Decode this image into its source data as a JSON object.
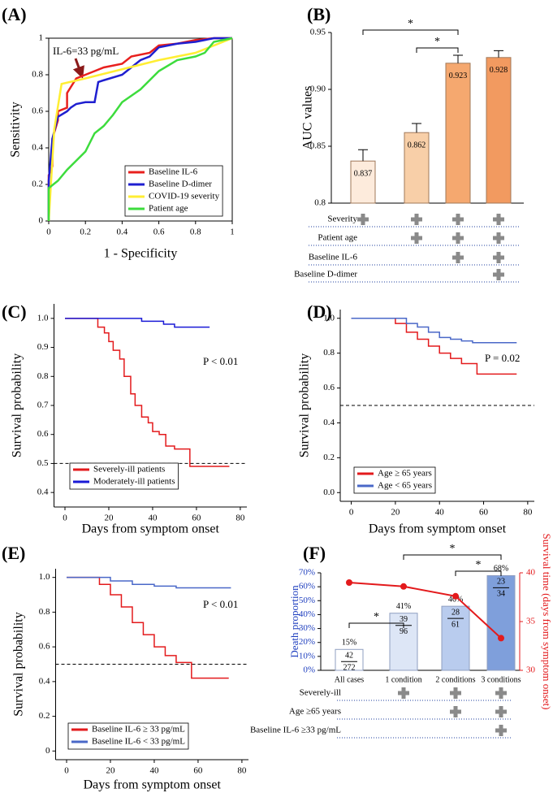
{
  "chart_data": [
    {
      "type": "line",
      "title": "(A)",
      "xlabel": "1 - Specificity",
      "ylabel": "Sensitivity",
      "annotation": "IL-6=33 pg/mL",
      "xlim": [
        0,
        1
      ],
      "ylim": [
        0,
        1
      ],
      "xticks": [
        0,
        0.2,
        0.4,
        0.6,
        0.8,
        1
      ],
      "yticks": [
        0,
        0.2,
        0.4,
        0.6,
        0.8,
        1
      ],
      "legend": "lower right",
      "series": [
        {
          "name": "Baseline IL-6",
          "color": "#e8201e",
          "x": [
            0,
            0,
            0.02,
            0.02,
            0.05,
            0.05,
            0.1,
            0.1,
            0.15,
            0.2,
            0.25,
            0.3,
            0.4,
            0.45,
            0.55,
            0.6,
            0.7,
            0.8,
            0.9,
            1
          ],
          "values": [
            0,
            0.25,
            0.3,
            0.45,
            0.55,
            0.6,
            0.62,
            0.7,
            0.78,
            0.8,
            0.82,
            0.84,
            0.86,
            0.9,
            0.92,
            0.96,
            0.97,
            0.99,
            1,
            1
          ]
        },
        {
          "name": "Baseline D-dimer",
          "color": "#1f1fd0",
          "x": [
            0,
            0,
            0.02,
            0.05,
            0.1,
            0.12,
            0.15,
            0.2,
            0.25,
            0.27,
            0.3,
            0.4,
            0.5,
            0.55,
            0.6,
            0.7,
            0.8,
            0.9,
            1
          ],
          "values": [
            0,
            0.22,
            0.45,
            0.57,
            0.6,
            0.62,
            0.64,
            0.65,
            0.65,
            0.76,
            0.77,
            0.8,
            0.88,
            0.9,
            0.95,
            0.97,
            0.98,
            1,
            1
          ]
        },
        {
          "name": "COVID-19 severity",
          "color": "#ffee33",
          "x": [
            0,
            0.03,
            0.07,
            0.2,
            0.4,
            0.6,
            0.8,
            0.95,
            1
          ],
          "values": [
            0,
            0.5,
            0.75,
            0.78,
            0.83,
            0.88,
            0.92,
            0.98,
            1
          ]
        },
        {
          "name": "Patient age",
          "color": "#3ddc3d",
          "x": [
            0,
            0,
            0.05,
            0.1,
            0.15,
            0.2,
            0.25,
            0.3,
            0.35,
            0.4,
            0.5,
            0.6,
            0.7,
            0.8,
            0.85,
            0.9,
            1
          ],
          "values": [
            0,
            0.18,
            0.22,
            0.28,
            0.33,
            0.38,
            0.48,
            0.52,
            0.58,
            0.65,
            0.72,
            0.82,
            0.88,
            0.9,
            0.92,
            0.98,
            1
          ]
        }
      ]
    },
    {
      "type": "bar",
      "title": "(B)",
      "ylabel": "AUC values",
      "ylim": [
        0.8,
        0.95
      ],
      "yticks": [
        0.8,
        0.85,
        {
          "value": 0.9,
          "label": "0.90"
        },
        0.95
      ],
      "values": [
        0.837,
        0.862,
        0.923,
        0.928
      ],
      "errors": [
        0.01,
        0.008,
        0.007,
        0.006
      ],
      "colors": [
        "#fdebdc",
        "#f8cfa8",
        "#f5a86f",
        "#f29a60"
      ],
      "significance": [
        "*",
        "*"
      ],
      "rows": [
        "Severity",
        "Patient age",
        "Baseline IL-6",
        "Baseline D-dimer"
      ]
    },
    {
      "type": "line",
      "step": true,
      "title": "(C)",
      "xlabel": "Days from symptom onset",
      "ylabel": "Survival probability",
      "annotation": "P < 0.01",
      "reference_line": 0.5,
      "xlim": [
        -5,
        83
      ],
      "ylim": [
        0.35,
        1.05
      ],
      "xticks": [
        0,
        20,
        40,
        60,
        80
      ],
      "yticks": [
        0.4,
        0.5,
        0.6,
        0.7,
        0.8,
        0.9,
        {
          "value": 1,
          "label": "1.0"
        }
      ],
      "legend": "lower left",
      "series": [
        {
          "name": "Severely-ill patients",
          "color": "#e31a1c",
          "x": [
            0,
            12,
            15,
            18,
            20,
            22,
            25,
            27,
            30,
            32,
            35,
            38,
            40,
            43,
            46,
            50,
            55,
            57,
            60,
            75
          ],
          "values": [
            1,
            1,
            0.97,
            0.95,
            0.92,
            0.89,
            0.86,
            0.8,
            0.74,
            0.7,
            0.66,
            0.64,
            0.61,
            0.6,
            0.56,
            0.55,
            0.55,
            0.49,
            0.49,
            0.49
          ]
        },
        {
          "name": "Moderately-ill patients",
          "color": "#1a1ad6",
          "x": [
            0,
            25,
            35,
            45,
            50,
            66
          ],
          "values": [
            1,
            1,
            0.99,
            0.98,
            0.97,
            0.97
          ]
        }
      ]
    },
    {
      "type": "line",
      "step": true,
      "title": "(D)",
      "xlabel": "Days from symptom onset",
      "ylabel": "Survival probability",
      "annotation": "P = 0.02",
      "reference_line": 0.5,
      "xlim": [
        -5,
        83
      ],
      "ylim": [
        -0.05,
        1.05
      ],
      "xticks": [
        0,
        20,
        40,
        60,
        80
      ],
      "yticks": [
        {
          "value": 0,
          "label": "0.0"
        },
        0.2,
        0.4,
        0.6,
        0.8,
        {
          "value": 1,
          "label": "1.0"
        }
      ],
      "legend": "lower left",
      "series": [
        {
          "name": "Age ≥ 65 years",
          "color": "#e31a1c",
          "x": [
            0,
            15,
            20,
            25,
            30,
            35,
            40,
            45,
            50,
            55,
            57,
            75
          ],
          "values": [
            1,
            1,
            0.97,
            0.92,
            0.88,
            0.84,
            0.8,
            0.77,
            0.74,
            0.74,
            0.68,
            0.68
          ]
        },
        {
          "name": "Age < 65 years",
          "color": "#4a68c8",
          "x": [
            0,
            20,
            25,
            30,
            35,
            40,
            45,
            50,
            55,
            75
          ],
          "values": [
            1,
            1,
            0.97,
            0.95,
            0.92,
            0.89,
            0.88,
            0.87,
            0.86,
            0.86
          ]
        }
      ]
    },
    {
      "type": "line",
      "step": true,
      "title": "(E)",
      "xlabel": "Days from symptom onset",
      "ylabel": "Survival probability",
      "annotation": "P < 0.01",
      "reference_line": 0.5,
      "xlim": [
        -5,
        83
      ],
      "ylim": [
        -0.05,
        1.05
      ],
      "xticks": [
        0,
        20,
        40,
        60,
        80
      ],
      "yticks": [
        0,
        0.2,
        0.4,
        0.6,
        0.8,
        {
          "value": 1,
          "label": "1.0"
        }
      ],
      "legend": "lower left",
      "series": [
        {
          "name": "Baseline IL-6 ≥ 33 pg/mL",
          "color": "#e31a1c",
          "x": [
            0,
            10,
            15,
            20,
            25,
            30,
            35,
            40,
            45,
            50,
            55,
            57,
            74
          ],
          "values": [
            1,
            1,
            0.96,
            0.9,
            0.83,
            0.74,
            0.67,
            0.6,
            0.55,
            0.51,
            0.51,
            0.42,
            0.42
          ]
        },
        {
          "name": "Baseline IL-6 < 33 pg/mL",
          "color": "#4a68c8",
          "x": [
            0,
            15,
            20,
            30,
            40,
            50,
            75
          ],
          "values": [
            1,
            1,
            0.98,
            0.96,
            0.95,
            0.94,
            0.94
          ]
        }
      ]
    },
    {
      "type": "bar",
      "title": "(F)",
      "ylabel": "Death proportion",
      "y2label": "Survival time (days from symptom onset)",
      "categories": [
        "All cases",
        "1 condition",
        "2 conditions",
        "3 conditions"
      ],
      "ylim": [
        0,
        70
      ],
      "yticks": [
        {
          "value": 0,
          "label": "0%"
        },
        {
          "value": 10,
          "label": "10%"
        },
        {
          "value": 20,
          "label": "20%"
        },
        {
          "value": 30,
          "label": "30%"
        },
        {
          "value": 40,
          "label": "40%"
        },
        {
          "value": 50,
          "label": "50%"
        },
        {
          "value": 60,
          "label": "60%"
        },
        {
          "value": 70,
          "label": "70%"
        }
      ],
      "y2lim": [
        30,
        40
      ],
      "y2ticks": [
        30,
        35,
        40
      ],
      "series": [
        {
          "type": "bar",
          "colors": [
            "#ffffff",
            "#dde6f6",
            "#b9ccee",
            "#7f9fdb"
          ],
          "values": [
            15,
            41,
            46,
            68
          ],
          "value_labels": [
            "15%",
            "41%",
            "46%",
            "68%"
          ],
          "numerators": [
            42,
            39,
            28,
            23
          ],
          "denominators": [
            272,
            96,
            61,
            34
          ]
        },
        {
          "type": "line",
          "axis": "y2",
          "color": "#e31a1c",
          "values": [
            39,
            38.6,
            37.6,
            33.3
          ]
        }
      ],
      "significance": [
        "*",
        "*",
        "*"
      ],
      "rows": [
        "Severely-ill",
        "Age ≥65 years",
        "Baseline IL-6 ≥33 pg/mL"
      ]
    }
  ]
}
